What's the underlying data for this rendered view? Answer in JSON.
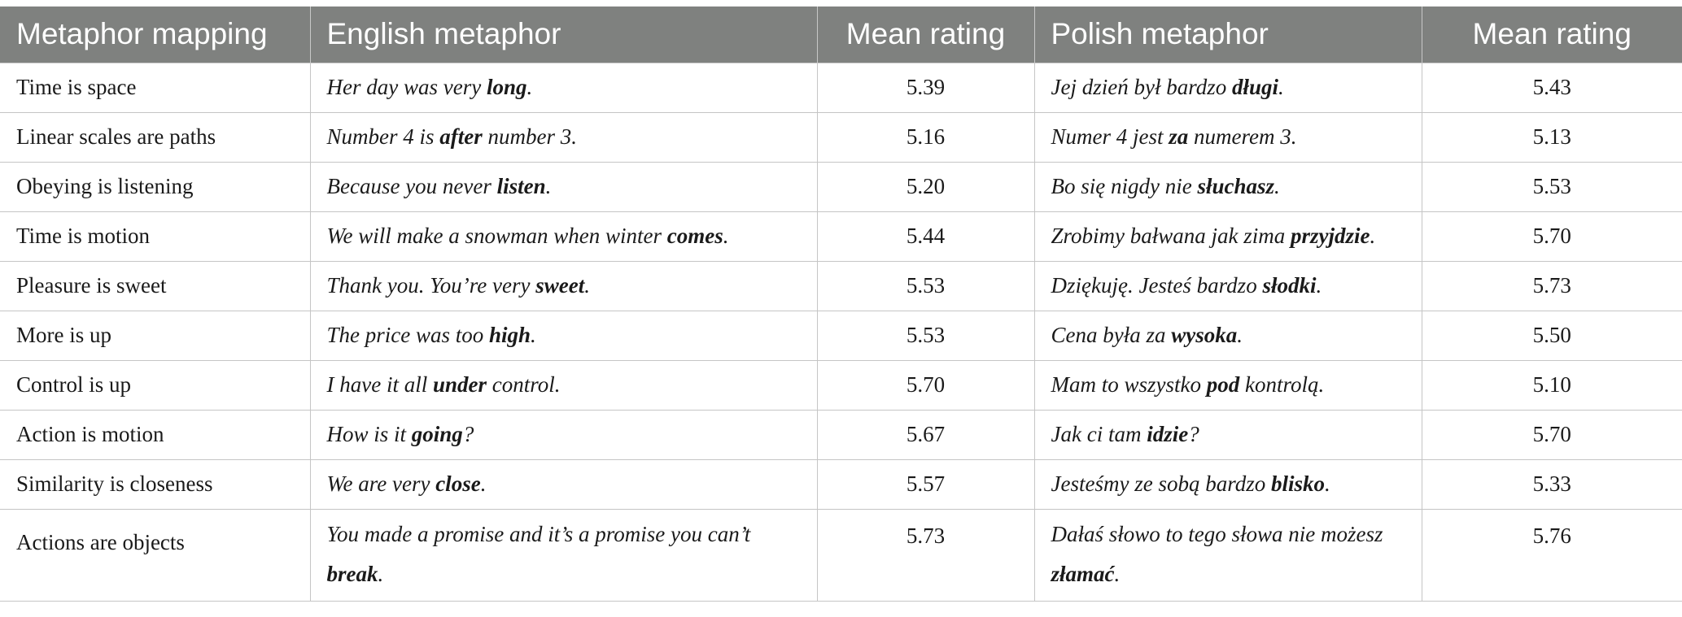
{
  "table": {
    "headers": [
      "Metaphor mapping",
      "English metaphor",
      "Mean rating",
      "Polish metaphor",
      "Mean rating"
    ],
    "rows": [
      {
        "mapping": "Time is space",
        "en_pre": "Her day was very ",
        "en_key": "long",
        "en_post": ".",
        "en_rating": "5.39",
        "pl_pre": "Jej dzień był bardzo ",
        "pl_key": "długi",
        "pl_post": ".",
        "pl_rating": "5.43"
      },
      {
        "mapping": "Linear scales are paths",
        "en_pre": "Number 4 is ",
        "en_key": "after",
        "en_post": " number 3.",
        "en_rating": "5.16",
        "pl_pre": "Numer 4 jest ",
        "pl_key": "za",
        "pl_post": " numerem 3.",
        "pl_rating": "5.13"
      },
      {
        "mapping": "Obeying is listening",
        "en_pre": "Because you never ",
        "en_key": "listen",
        "en_post": ".",
        "en_rating": "5.20",
        "pl_pre": "Bo się nigdy nie ",
        "pl_key": "słuchasz",
        "pl_post": ".",
        "pl_rating": "5.53"
      },
      {
        "mapping": "Time is motion",
        "en_pre": "We will make a snowman when winter ",
        "en_key": "comes",
        "en_post": ".",
        "en_rating": "5.44",
        "pl_pre": "Zrobimy bałwana jak zima ",
        "pl_key": "przyjdzie",
        "pl_post": ".",
        "pl_rating": "5.70"
      },
      {
        "mapping": "Pleasure is sweet",
        "en_pre": "Thank you. You’re very ",
        "en_key": "sweet",
        "en_post": ".",
        "en_rating": "5.53",
        "pl_pre": "Dziękuję. Jesteś bardzo ",
        "pl_key": "słodki",
        "pl_post": ".",
        "pl_rating": "5.73"
      },
      {
        "mapping": "More is up",
        "en_pre": "The price was too ",
        "en_key": "high",
        "en_post": ".",
        "en_rating": "5.53",
        "pl_pre": "Cena była za ",
        "pl_key": "wysoka",
        "pl_post": ".",
        "pl_rating": "5.50"
      },
      {
        "mapping": "Control is up",
        "en_pre": "I have it all ",
        "en_key": "under",
        "en_post": " control.",
        "en_rating": "5.70",
        "pl_pre": "Mam to wszystko ",
        "pl_key": "pod",
        "pl_post": " kontrolą.",
        "pl_rating": "5.10"
      },
      {
        "mapping": "Action is motion",
        "en_pre": "How is it ",
        "en_key": "going",
        "en_post": "?",
        "en_rating": "5.67",
        "pl_pre": "Jak ci tam ",
        "pl_key": "idzie",
        "pl_post": "?",
        "pl_rating": "5.70"
      },
      {
        "mapping": "Similarity is closeness",
        "en_pre": "We are very ",
        "en_key": "close",
        "en_post": ".",
        "en_rating": "5.57",
        "pl_pre": "Jesteśmy ze sobą bardzo ",
        "pl_key": "blisko",
        "pl_post": ".",
        "pl_rating": "5.33"
      },
      {
        "mapping": "Actions are objects",
        "en_pre": "You made a promise and it’s a promise you can’t ",
        "en_key": "break",
        "en_post": ".",
        "en_rating": "5.73",
        "pl_pre": "Dałaś słowo to tego słowa nie możesz ",
        "pl_key": "złamać",
        "pl_post": ".",
        "pl_rating": "5.76"
      }
    ]
  },
  "colors": {
    "header_bg": "#7f817f",
    "header_text": "#ffffff",
    "grid": "#c5c5c5"
  }
}
